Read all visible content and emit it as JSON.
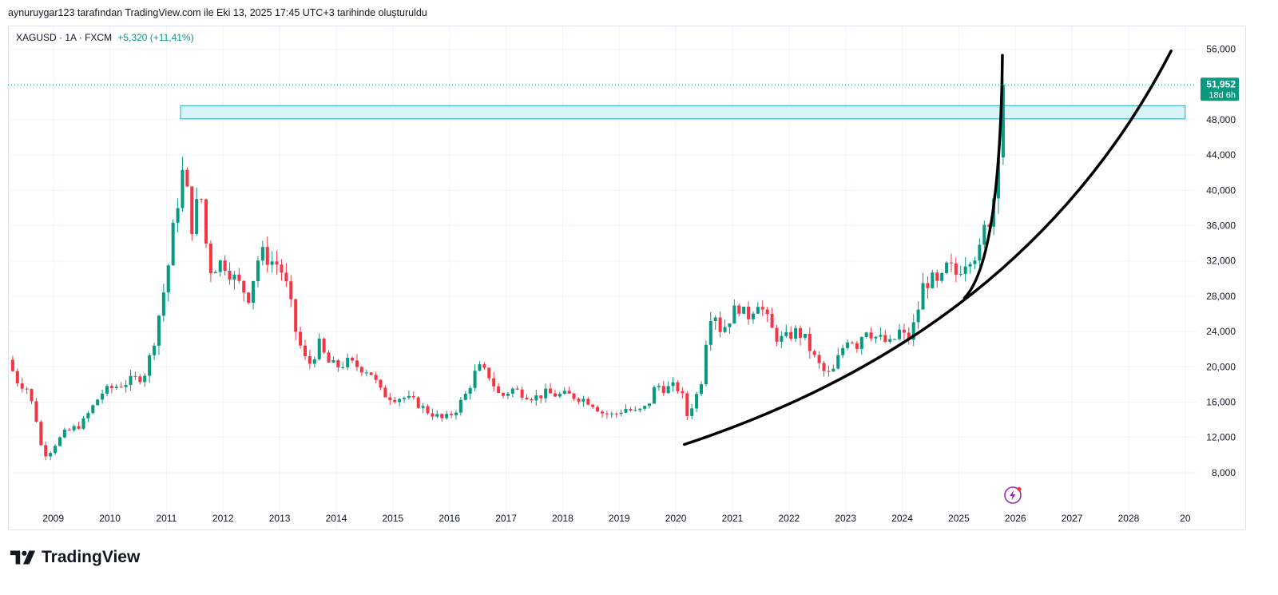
{
  "caption": "aynuruygar123 tarafından TradingView.com ile Eki 13, 2025 17:45 UTC+3 tarihinde oluşturuldu",
  "brand": "TradingView",
  "icons": {
    "logo": "tradingview-logo-icon",
    "flash": "lightning-icon"
  },
  "colors": {
    "up": "#089981",
    "down": "#f23645",
    "zone_fill": "#d7f3f7",
    "zone_stroke": "#26a6b8",
    "curve": "#000000",
    "grid": "#f0f3fa"
  },
  "chart_data": {
    "type": "candlestick",
    "symbol": "XAGUSD",
    "timeframe": "1A",
    "source": "FXCM",
    "change": "+5,320 (+11,41%)",
    "last_price": 51.952,
    "last_price_label": "51,952",
    "countdown_label": "18d 6h",
    "ylim": [
      5,
      57.5
    ],
    "y_ticks": [
      8,
      12,
      16,
      20,
      24,
      28,
      32,
      36,
      40,
      44,
      48,
      56
    ],
    "y_tick_labels": [
      "8,000",
      "12,000",
      "16,000",
      "20,000",
      "24,000",
      "28,000",
      "32,000",
      "36,000",
      "40,000",
      "44,000",
      "48,000",
      "56,000"
    ],
    "x_ticks": [
      "2009",
      "2010",
      "2011",
      "2012",
      "2013",
      "2014",
      "2015",
      "2016",
      "2017",
      "2018",
      "2019",
      "2020",
      "2021",
      "2022",
      "2023",
      "2024",
      "2025",
      "2026",
      "2027",
      "2028",
      "20"
    ],
    "x_tick_positions": [
      2009,
      2010,
      2011,
      2012,
      2013,
      2014,
      2015,
      2016,
      2017,
      2018,
      2019,
      2020,
      2021,
      2022,
      2023,
      2024,
      2025,
      2026,
      2027,
      2028,
      2029
    ],
    "xlim": [
      2008.2,
      2029.2
    ],
    "anchors": [
      [
        2008.2,
        20.8
      ],
      [
        2008.35,
        18.5
      ],
      [
        2008.55,
        17.5
      ],
      [
        2008.7,
        14.0
      ],
      [
        2008.8,
        10.5
      ],
      [
        2008.9,
        10.0
      ],
      [
        2009.0,
        11.0
      ],
      [
        2009.2,
        12.5
      ],
      [
        2009.35,
        13.0
      ],
      [
        2009.5,
        13.5
      ],
      [
        2009.7,
        15.5
      ],
      [
        2009.85,
        17.0
      ],
      [
        2010.0,
        17.5
      ],
      [
        2010.2,
        18.0
      ],
      [
        2010.4,
        18.5
      ],
      [
        2010.6,
        19.0
      ],
      [
        2010.75,
        22.0
      ],
      [
        2010.9,
        27.0
      ],
      [
        2011.0,
        30.0
      ],
      [
        2011.15,
        37.0
      ],
      [
        2011.3,
        42.5
      ],
      [
        2011.45,
        36.0
      ],
      [
        2011.6,
        40.0
      ],
      [
        2011.75,
        31.0
      ],
      [
        2012.0,
        32.0
      ],
      [
        2012.2,
        30.0
      ],
      [
        2012.45,
        28.0
      ],
      [
        2012.65,
        33.0
      ],
      [
        2012.85,
        32.0
      ],
      [
        2013.0,
        31.5
      ],
      [
        2013.15,
        28.5
      ],
      [
        2013.3,
        23.5
      ],
      [
        2013.5,
        20.0
      ],
      [
        2013.7,
        22.5
      ],
      [
        2013.85,
        20.5
      ],
      [
        2014.0,
        20.0
      ],
      [
        2014.2,
        20.5
      ],
      [
        2014.4,
        20.0
      ],
      [
        2014.6,
        19.5
      ],
      [
        2014.8,
        17.0
      ],
      [
        2015.0,
        16.5
      ],
      [
        2015.2,
        16.5
      ],
      [
        2015.4,
        16.0
      ],
      [
        2015.6,
        15.0
      ],
      [
        2015.9,
        14.0
      ],
      [
        2016.1,
        15.0
      ],
      [
        2016.3,
        17.0
      ],
      [
        2016.5,
        20.0
      ],
      [
        2016.7,
        19.0
      ],
      [
        2016.9,
        16.5
      ],
      [
        2017.1,
        17.5
      ],
      [
        2017.3,
        17.0
      ],
      [
        2017.5,
        16.5
      ],
      [
        2017.7,
        17.0
      ],
      [
        2017.9,
        16.8
      ],
      [
        2018.1,
        16.8
      ],
      [
        2018.3,
        16.5
      ],
      [
        2018.5,
        16.0
      ],
      [
        2018.7,
        14.8
      ],
      [
        2018.9,
        14.5
      ],
      [
        2019.1,
        15.3
      ],
      [
        2019.3,
        14.8
      ],
      [
        2019.5,
        15.5
      ],
      [
        2019.65,
        18.0
      ],
      [
        2019.8,
        17.5
      ],
      [
        2020.0,
        17.8
      ],
      [
        2020.1,
        17.0
      ],
      [
        2020.2,
        14.5
      ],
      [
        2020.35,
        16.5
      ],
      [
        2020.45,
        18.5
      ],
      [
        2020.55,
        24.0
      ],
      [
        2020.65,
        27.0
      ],
      [
        2020.8,
        24.0
      ],
      [
        2020.95,
        25.5
      ],
      [
        2021.1,
        27.0
      ],
      [
        2021.25,
        25.5
      ],
      [
        2021.45,
        27.5
      ],
      [
        2021.6,
        25.5
      ],
      [
        2021.75,
        23.5
      ],
      [
        2021.9,
        23.0
      ],
      [
        2022.1,
        24.0
      ],
      [
        2022.25,
        23.5
      ],
      [
        2022.45,
        21.0
      ],
      [
        2022.6,
        19.5
      ],
      [
        2022.75,
        19.0
      ],
      [
        2022.9,
        21.5
      ],
      [
        2023.05,
        23.5
      ],
      [
        2023.2,
        22.5
      ],
      [
        2023.35,
        24.5
      ],
      [
        2023.5,
        23.5
      ],
      [
        2023.65,
        23.0
      ],
      [
        2023.8,
        22.5
      ],
      [
        2023.95,
        24.0
      ],
      [
        2024.1,
        23.0
      ],
      [
        2024.25,
        25.5
      ],
      [
        2024.35,
        29.0
      ],
      [
        2024.5,
        30.0
      ],
      [
        2024.65,
        29.0
      ],
      [
        2024.8,
        31.5
      ],
      [
        2024.95,
        30.5
      ],
      [
        2025.1,
        32.0
      ],
      [
        2025.25,
        33.0
      ],
      [
        2025.35,
        32.5
      ],
      [
        2025.45,
        35.5
      ],
      [
        2025.55,
        37.0
      ],
      [
        2025.65,
        40.5
      ],
      [
        2025.72,
        47.0
      ],
      [
        2025.77,
        51.9
      ]
    ],
    "zone": {
      "x_from": 2011.25,
      "x_to": 2029.0,
      "y_low": 48.1,
      "y_high": 49.6
    },
    "curves": [
      {
        "name": "wide-arc",
        "from": [
          2020.15,
          11.2
        ],
        "ctrl": [
          2026.2,
          24.0
        ],
        "to": [
          2028.75,
          55.8
        ]
      },
      {
        "name": "steep-arc",
        "from": [
          2025.1,
          27.8
        ],
        "ctrl": [
          2025.73,
          32.0
        ],
        "to": [
          2025.77,
          55.3
        ]
      }
    ]
  }
}
